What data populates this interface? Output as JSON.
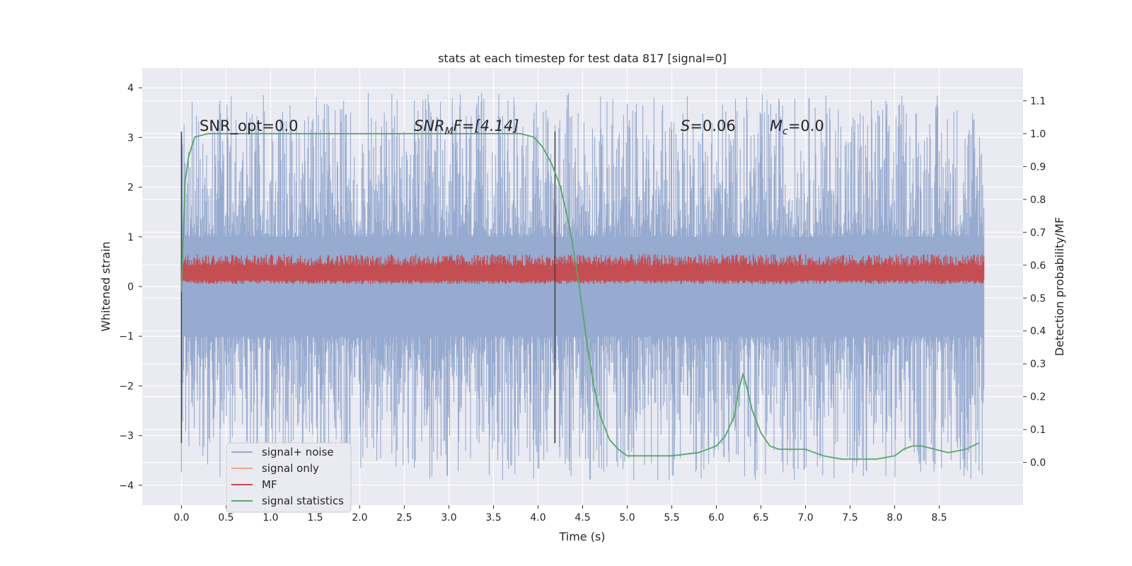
{
  "chart_data": {
    "type": "line",
    "title": "stats at each timestep for test data 817 [signal=0]",
    "xlabel": "Time (s)",
    "ylabel": "Whitened strain",
    "y2label": "Detection probability/MF",
    "xlim": [
      -0.44,
      9.44
    ],
    "ylim": [
      -4.4,
      4.4
    ],
    "y2lim": [
      -0.13,
      1.2
    ],
    "xticks": [
      "0.0",
      "0.5",
      "1.0",
      "1.5",
      "2.0",
      "2.5",
      "3.0",
      "3.5",
      "4.0",
      "4.5",
      "5.0",
      "5.5",
      "6.0",
      "6.5",
      "7.0",
      "7.5",
      "8.0",
      "8.5"
    ],
    "yticks": [
      "4",
      "3",
      "2",
      "1",
      "0",
      "−1",
      "−2",
      "−3",
      "−4"
    ],
    "y2ticks": [
      "1.1",
      "1.0",
      "0.9",
      "0.8",
      "0.7",
      "0.6",
      "0.5",
      "0.4",
      "0.3",
      "0.2",
      "0.1",
      "0.0"
    ],
    "grid": true,
    "legend_position": "lower-left",
    "annotations": {
      "snr_opt": "SNR_opt=0.0",
      "snr_mf_base": "SNR",
      "snr_mf_sub": "M",
      "snr_mf_rest": "F=[4.14]",
      "s_label": "S",
      "s_rest": "=0.06",
      "mc_base": "M",
      "mc_sub": "c",
      "mc_rest": "=0.0"
    },
    "vlines": [
      0.0,
      4.19
    ],
    "vline_range": [
      -3.15,
      3.12
    ],
    "series": [
      {
        "name": "signal+ noise",
        "color": "#97aacf",
        "x_range": [
          0.0,
          9.0
        ],
        "band_1sigma": 1.0,
        "envelope_max": 4.0,
        "envelope_min": -4.0
      },
      {
        "name": "signal only",
        "color": "#eaa98a",
        "values": []
      },
      {
        "name": "MF",
        "color": "#c44e52",
        "x_range": [
          0.0,
          9.0
        ],
        "band": [
          0.05,
          0.65
        ]
      },
      {
        "name": "signal statistics",
        "color": "#55a868",
        "x": [
          0.0,
          0.04,
          0.08,
          0.15,
          0.3,
          0.5,
          1.0,
          2.0,
          3.0,
          3.5,
          3.8,
          3.95,
          4.05,
          4.15,
          4.25,
          4.35,
          4.45,
          4.55,
          4.62,
          4.7,
          4.8,
          4.9,
          5.0,
          5.2,
          5.5,
          5.8,
          6.0,
          6.1,
          6.2,
          6.25,
          6.3,
          6.35,
          6.4,
          6.5,
          6.6,
          6.7,
          6.8,
          7.0,
          7.2,
          7.4,
          7.6,
          7.8,
          8.0,
          8.1,
          8.2,
          8.3,
          8.45,
          8.6,
          8.8,
          8.95
        ],
        "values": [
          0.52,
          0.85,
          0.93,
          0.99,
          1.0,
          1.0,
          1.0,
          1.0,
          1.0,
          1.0,
          1.0,
          0.99,
          0.96,
          0.91,
          0.84,
          0.72,
          0.56,
          0.36,
          0.24,
          0.14,
          0.07,
          0.04,
          0.02,
          0.02,
          0.02,
          0.03,
          0.05,
          0.08,
          0.14,
          0.22,
          0.27,
          0.22,
          0.16,
          0.09,
          0.05,
          0.04,
          0.04,
          0.04,
          0.02,
          0.01,
          0.01,
          0.01,
          0.02,
          0.04,
          0.05,
          0.05,
          0.04,
          0.03,
          0.04,
          0.06
        ]
      }
    ]
  }
}
